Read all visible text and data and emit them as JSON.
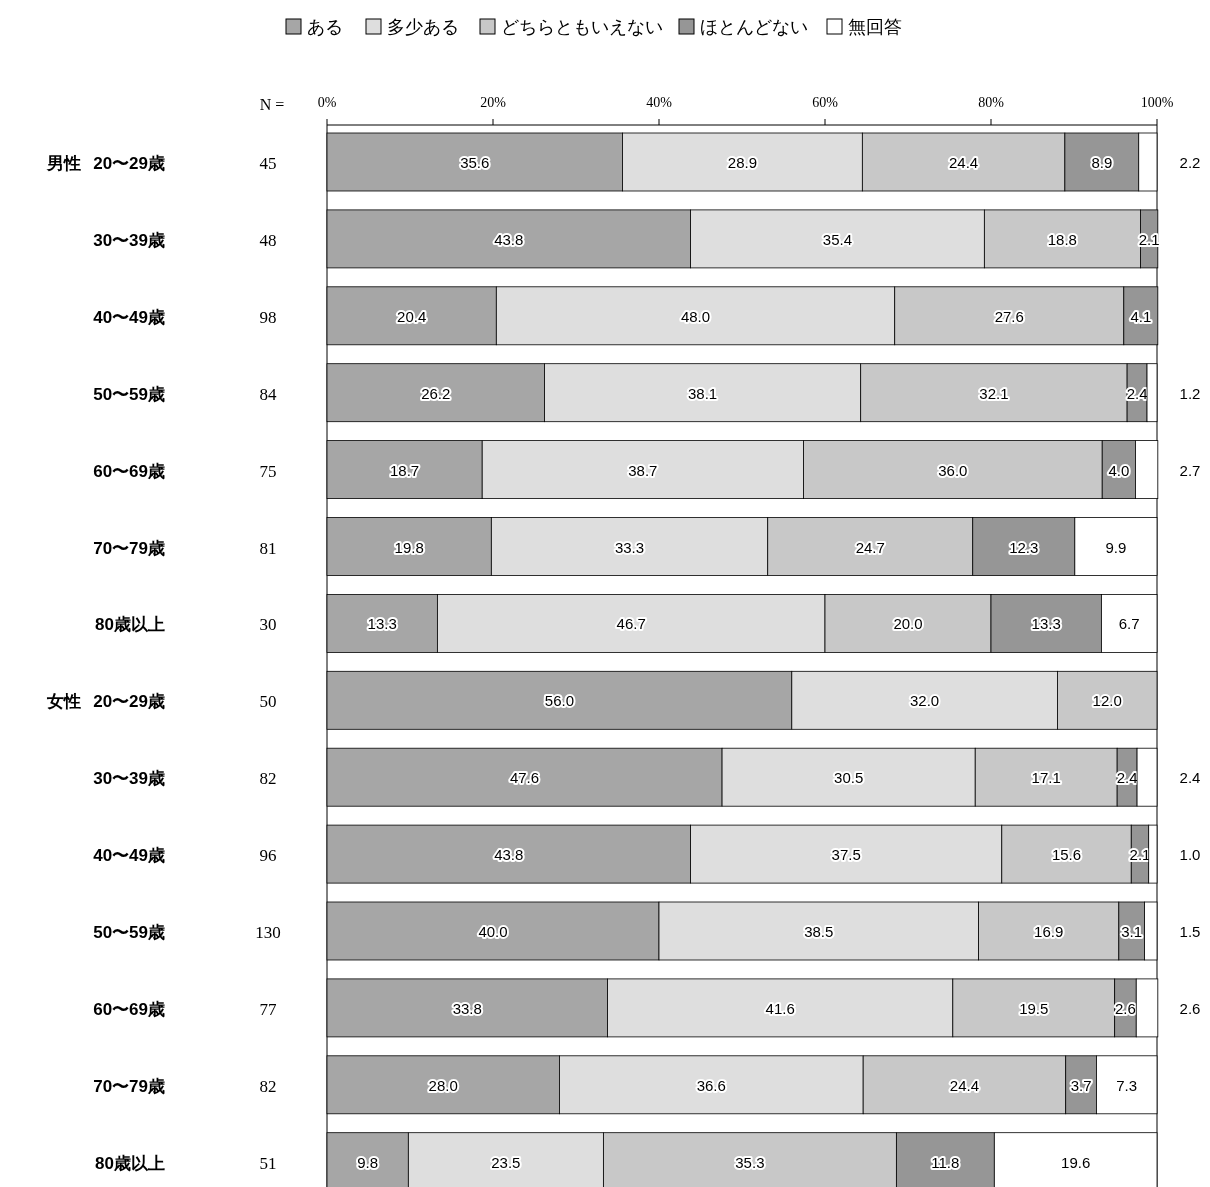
{
  "chart_data": {
    "type": "bar",
    "orientation": "horizontal",
    "stacked": true,
    "legend": "top",
    "grid": false,
    "categories": [
      "男性 20〜29歳",
      "30〜39歳",
      "40〜49歳",
      "50〜59歳",
      "60〜69歳",
      "70〜79歳",
      "80歳以上",
      "女性 20〜29歳",
      "30〜39歳",
      "40〜49歳",
      "50〜59歳",
      "60〜69歳",
      "70〜79歳",
      "80歳以上"
    ],
    "xlim": [
      0,
      100
    ],
    "xticks": [
      {
        "value": 0,
        "label": "0%"
      },
      {
        "value": 20,
        "label": "20%"
      },
      {
        "value": 40,
        "label": "40%"
      },
      {
        "value": 60,
        "label": "60%"
      },
      {
        "value": 80,
        "label": "80%"
      },
      {
        "value": 100,
        "label": "100%"
      }
    ],
    "annotations": [
      "N =",
      "45",
      "48",
      "98",
      "84",
      "75",
      "81",
      "30",
      "50",
      "82",
      "96",
      "130",
      "77",
      "82",
      "51"
    ],
    "series": [
      {
        "name": "ある",
        "color": "#a6a6a6",
        "values": [
          35.6,
          43.8,
          20.4,
          26.2,
          18.7,
          19.8,
          13.3,
          56.0,
          47.6,
          43.8,
          40.0,
          33.8,
          28.0,
          9.8
        ],
        "value_labels": [
          "35.6",
          "43.8",
          "20.4",
          "26.2",
          "18.7",
          "19.8",
          "13.3",
          "56.0",
          "47.6",
          "43.8",
          "40.0",
          "33.8",
          "28.0",
          "9.8"
        ]
      },
      {
        "name": "多少ある",
        "color": "#dedede",
        "values": [
          28.9,
          35.4,
          48.0,
          38.1,
          38.7,
          33.3,
          46.7,
          32.0,
          30.5,
          37.5,
          38.5,
          41.6,
          36.6,
          23.5
        ],
        "value_labels": [
          "28.9",
          "35.4",
          "48.0",
          "38.1",
          "38.7",
          "33.3",
          "46.7",
          "32.0",
          "30.5",
          "37.5",
          "38.5",
          "41.6",
          "36.6",
          "23.5"
        ]
      },
      {
        "name": "どちらともいえない",
        "color": "#c8c8c8",
        "values": [
          24.4,
          18.8,
          27.6,
          32.1,
          36.0,
          24.7,
          20.0,
          12.0,
          17.1,
          15.6,
          16.9,
          19.5,
          24.4,
          35.3
        ],
        "value_labels": [
          "24.4",
          "18.8",
          "27.6",
          "32.1",
          "36.0",
          "24.7",
          "20.0",
          "12.0",
          "17.1",
          "15.6",
          "16.9",
          "19.5",
          "24.4",
          "35.3"
        ]
      },
      {
        "name": "ほとんどない",
        "color": "#969696",
        "values": [
          8.9,
          2.1,
          4.1,
          2.4,
          4.0,
          12.3,
          13.3,
          0,
          2.4,
          2.1,
          3.1,
          2.6,
          3.7,
          11.8
        ],
        "value_labels": [
          "8.9",
          "2.1",
          "4.1",
          "2.4",
          "4.0",
          "12.3",
          "13.3",
          null,
          "2.4",
          "2.1",
          "3.1",
          "2.6",
          "3.7",
          "11.8"
        ]
      },
      {
        "name": "無回答",
        "color": "#ffffff",
        "values": [
          2.2,
          0,
          0,
          1.2,
          2.7,
          9.9,
          6.7,
          0,
          2.4,
          1.0,
          1.5,
          2.6,
          7.3,
          19.6
        ],
        "value_labels": [
          "2.2",
          null,
          null,
          "1.2",
          "2.7",
          "9.9",
          "6.7",
          null,
          "2.4",
          "1.0",
          "1.5",
          "2.6",
          "7.3",
          "19.6"
        ]
      }
    ]
  }
}
